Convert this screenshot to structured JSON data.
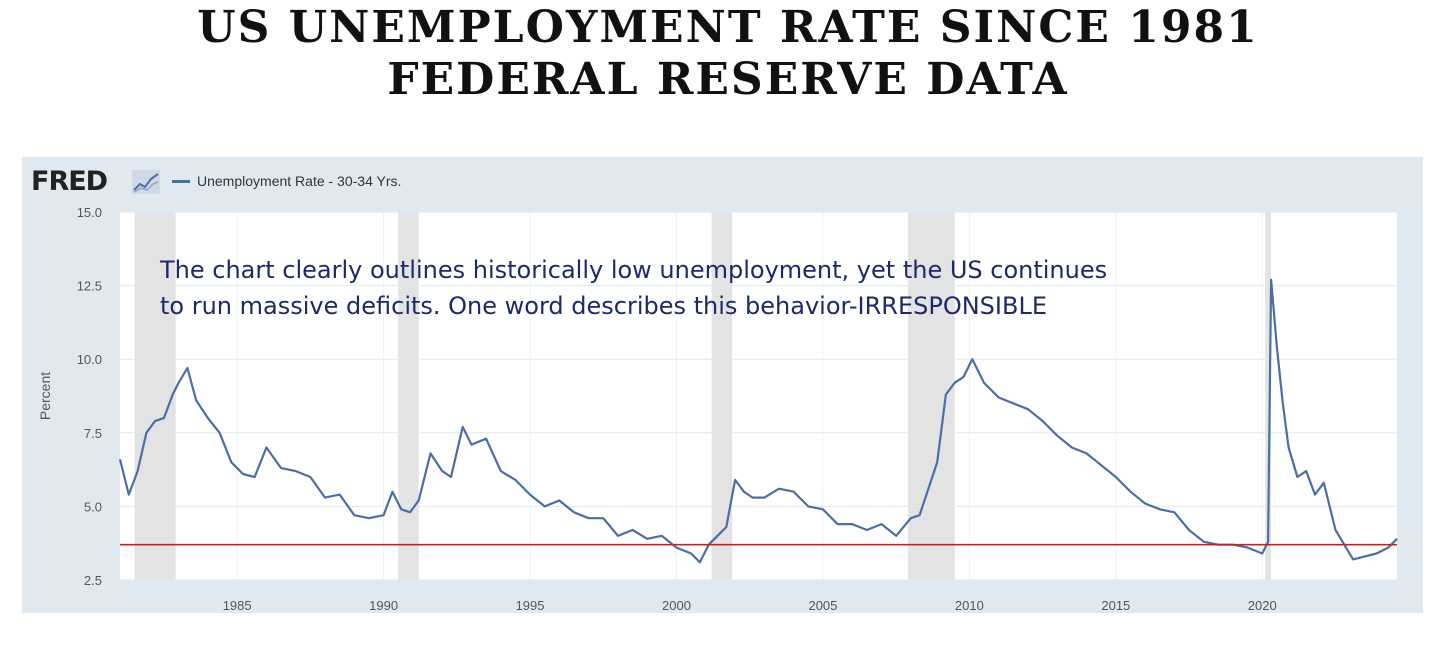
{
  "header": {
    "title_line1": "US UNEMPLOYMENT RATE SINCE 1981",
    "title_line2": "FEDERAL RESERVE DATA"
  },
  "logo": {
    "text": "FRED",
    "icon": "line-chart-icon"
  },
  "annotation": {
    "line1": "The chart clearly outlines historically low unemployment, yet the US continues",
    "line2": "to run massive deficits. One word describes this behavior-IRRESPONSIBLE"
  },
  "colors": {
    "series": "#4b6fa5",
    "reference_line": "#cc1f1f",
    "recession": "#e3e3e3",
    "panel": "#e1e9f0"
  },
  "chart_data": {
    "type": "line",
    "title": "",
    "xlabel": "",
    "ylabel": "Percent",
    "xlim": [
      1981.0,
      2024.6
    ],
    "ylim": [
      2.5,
      15.0
    ],
    "y_ticks": [
      2.5,
      5.0,
      7.5,
      10.0,
      12.5,
      15.0
    ],
    "y_tick_labels": [
      "2.5",
      "5.0",
      "7.5",
      "10.0",
      "12.5",
      "15.0"
    ],
    "x_ticks": [
      1985,
      1990,
      1995,
      2000,
      2005,
      2010,
      2015,
      2020
    ],
    "x_tick_labels": [
      "1985",
      "1990",
      "1995",
      "2000",
      "2005",
      "2010",
      "2015",
      "2020"
    ],
    "grid": true,
    "legend": "top-left",
    "series": [
      {
        "name": "Unemployment Rate - 30-34 Yrs.",
        "x": [
          1981.0,
          1981.3,
          1981.6,
          1981.9,
          1982.2,
          1982.5,
          1982.8,
          1983.0,
          1983.3,
          1983.6,
          1984.0,
          1984.4,
          1984.8,
          1985.2,
          1985.6,
          1986.0,
          1986.5,
          1987.0,
          1987.5,
          1988.0,
          1988.5,
          1989.0,
          1989.5,
          1990.0,
          1990.3,
          1990.6,
          1990.9,
          1991.2,
          1991.6,
          1992.0,
          1992.3,
          1992.7,
          1993.0,
          1993.5,
          1994.0,
          1994.5,
          1995.0,
          1995.5,
          1996.0,
          1996.5,
          1997.0,
          1997.5,
          1998.0,
          1998.5,
          1999.0,
          1999.5,
          2000.0,
          2000.5,
          2000.8,
          2001.1,
          2001.4,
          2001.7,
          2002.0,
          2002.3,
          2002.6,
          2003.0,
          2003.5,
          2004.0,
          2004.5,
          2005.0,
          2005.5,
          2006.0,
          2006.5,
          2007.0,
          2007.5,
          2008.0,
          2008.3,
          2008.6,
          2008.9,
          2009.2,
          2009.5,
          2009.8,
          2010.1,
          2010.5,
          2011.0,
          2011.5,
          2012.0,
          2012.5,
          2013.0,
          2013.5,
          2014.0,
          2014.5,
          2015.0,
          2015.5,
          2016.0,
          2016.5,
          2017.0,
          2017.5,
          2018.0,
          2018.5,
          2019.0,
          2019.5,
          2020.0,
          2020.2,
          2020.3,
          2020.5,
          2020.7,
          2020.9,
          2021.2,
          2021.5,
          2021.8,
          2022.1,
          2022.5,
          2022.8,
          2023.1,
          2023.5,
          2023.9,
          2024.3,
          2024.6
        ],
        "values": [
          6.6,
          5.4,
          6.2,
          7.5,
          7.9,
          8.0,
          8.8,
          9.2,
          9.7,
          8.6,
          8.0,
          7.5,
          6.5,
          6.1,
          6.0,
          7.0,
          6.3,
          6.2,
          6.0,
          5.3,
          5.4,
          4.7,
          4.6,
          4.7,
          5.5,
          4.9,
          4.8,
          5.2,
          6.8,
          6.2,
          6.0,
          7.7,
          7.1,
          7.3,
          6.2,
          5.9,
          5.4,
          5.0,
          5.2,
          4.8,
          4.6,
          4.6,
          4.0,
          4.2,
          3.9,
          4.0,
          3.6,
          3.4,
          3.1,
          3.7,
          4.0,
          4.3,
          5.9,
          5.5,
          5.3,
          5.3,
          5.6,
          5.5,
          5.0,
          4.9,
          4.4,
          4.4,
          4.2,
          4.4,
          4.0,
          4.6,
          4.7,
          5.6,
          6.5,
          8.8,
          9.2,
          9.4,
          10.0,
          9.2,
          8.7,
          8.5,
          8.3,
          7.9,
          7.4,
          7.0,
          6.8,
          6.4,
          6.0,
          5.5,
          5.1,
          4.9,
          4.8,
          4.2,
          3.8,
          3.7,
          3.7,
          3.6,
          3.4,
          3.8,
          12.7,
          10.4,
          8.5,
          7.0,
          6.0,
          6.2,
          5.4,
          5.8,
          4.2,
          3.7,
          3.2,
          3.3,
          3.4,
          3.6,
          3.9
        ]
      }
    ],
    "recessions": [
      [
        1981.5,
        1982.9
      ],
      [
        1990.5,
        1991.2
      ],
      [
        2001.2,
        2001.9
      ],
      [
        2007.9,
        2009.5
      ],
      [
        2020.1,
        2020.3
      ]
    ],
    "reference_line": {
      "y": 3.7
    }
  }
}
